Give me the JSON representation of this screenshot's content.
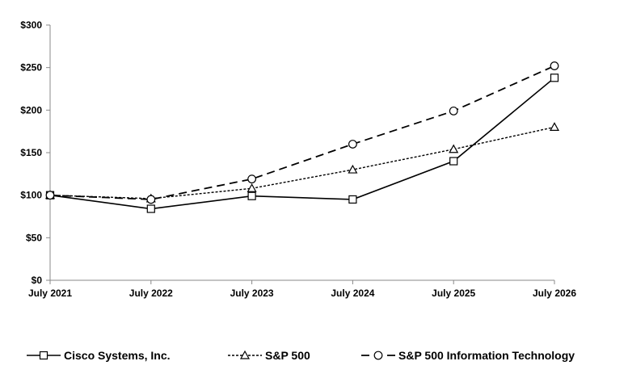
{
  "chart_data": {
    "type": "line",
    "title": "",
    "xlabel": "",
    "ylabel": "",
    "categories": [
      "July 2021",
      "July 2022",
      "July 2023",
      "July 2024",
      "July 2025",
      "July 2026"
    ],
    "y_ticks": [
      "$0",
      "$50",
      "$100",
      "$150",
      "$200",
      "$250",
      "$300"
    ],
    "ylim": [
      0,
      300
    ],
    "grid": false,
    "legend_position": "bottom",
    "series": [
      {
        "name": "Cisco Systems, Inc.",
        "values": [
          100,
          84,
          99,
          95,
          140,
          238
        ],
        "marker": "square",
        "dash": "solid",
        "color": "#000000"
      },
      {
        "name": "S&P 500",
        "values": [
          100,
          96,
          108,
          130,
          154,
          180
        ],
        "marker": "triangle",
        "dash": "dotted",
        "color": "#000000"
      },
      {
        "name": "S&P 500 Information Technology",
        "values": [
          100,
          95,
          119,
          160,
          199,
          252
        ],
        "marker": "circle",
        "dash": "dashed",
        "color": "#000000"
      }
    ]
  }
}
